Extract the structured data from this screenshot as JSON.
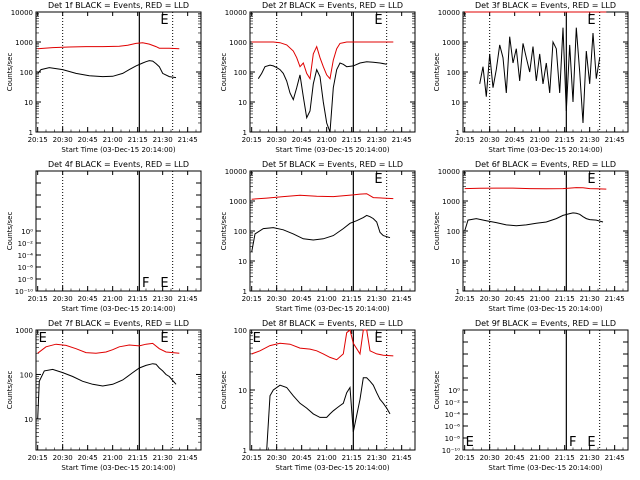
{
  "figure": {
    "background": "#ffffff",
    "axis_color": "#000000",
    "events_color": "#000000",
    "lld_color": "#e00000"
  },
  "chart_data": [
    {
      "type": "line",
      "title": "Det 1f BLACK = Events, RED = LLD",
      "xlabel": "Start Time (03-Dec-15 20:14:00)",
      "ylabel": "Counts/sec",
      "x_ticks": [
        "20:15",
        "20:30",
        "20:45",
        "21:00",
        "21:15",
        "21:30",
        "21:45"
      ],
      "y_ticks": [
        "1",
        "10",
        "100",
        "1000",
        "10000"
      ],
      "yscale": "log",
      "ylim": [
        1,
        10000
      ],
      "xlim_minutes": [
        0,
        99
      ],
      "dotted_verticals_min": [
        16,
        82
      ],
      "solid_verticals_min": [
        62
      ],
      "markers": [
        {
          "label": "E",
          "minute": 74
        }
      ],
      "series": [
        {
          "color": "red",
          "x": [
            1,
            10,
            20,
            30,
            40,
            50,
            55,
            60,
            64,
            68,
            72,
            74,
            80,
            86
          ],
          "y": [
            600,
            650,
            680,
            700,
            700,
            720,
            780,
            900,
            950,
            850,
            700,
            620,
            620,
            600
          ]
        },
        {
          "color": "black",
          "x": [
            1,
            3,
            8,
            16,
            24,
            32,
            40,
            46,
            52,
            56,
            60,
            64,
            66,
            68,
            70,
            72,
            74,
            76,
            80,
            84
          ],
          "y": [
            90,
            120,
            140,
            120,
            90,
            75,
            70,
            72,
            90,
            120,
            160,
            200,
            220,
            240,
            230,
            190,
            150,
            90,
            70,
            65
          ]
        }
      ]
    },
    {
      "type": "line",
      "title": "Det 2f BLACK = Events, RED = LLD",
      "xlabel": "Start Time (03-Dec-15 20:14:00)",
      "ylabel": "Counts/sec",
      "x_ticks": [
        "20:15",
        "20:30",
        "20:45",
        "21:00",
        "21:15",
        "21:30",
        "21:45"
      ],
      "y_ticks": [
        "1",
        "10",
        "100",
        "1000",
        "10000"
      ],
      "yscale": "log",
      "ylim": [
        1,
        10000
      ],
      "xlim_minutes": [
        0,
        99
      ],
      "dotted_verticals_min": [
        16,
        82
      ],
      "solid_verticals_min": [
        62
      ],
      "markers": [
        {
          "label": "E",
          "minute": 74
        }
      ],
      "series": [
        {
          "color": "red",
          "x": [
            1,
            8,
            14,
            18,
            22,
            26,
            28,
            30,
            32,
            34,
            36,
            38,
            40,
            42,
            44,
            46,
            48,
            50,
            52,
            54,
            56,
            58,
            60,
            62,
            64,
            68,
            76,
            86
          ],
          "y": [
            1000,
            1000,
            1000,
            950,
            800,
            500,
            300,
            150,
            200,
            90,
            60,
            400,
            700,
            300,
            150,
            80,
            60,
            250,
            600,
            900,
            950,
            1000,
            1000,
            1000,
            1000,
            1000,
            1000,
            1000
          ]
        },
        {
          "color": "black",
          "x": [
            5,
            7,
            9,
            12,
            14,
            16,
            18,
            20,
            22,
            24,
            26,
            28,
            30,
            32,
            34,
            36,
            38,
            40,
            42,
            44,
            46,
            48,
            50,
            52,
            54,
            56,
            58,
            62,
            66,
            70,
            74,
            78,
            82
          ],
          "y": [
            60,
            90,
            150,
            170,
            160,
            140,
            120,
            90,
            50,
            20,
            12,
            30,
            80,
            15,
            3,
            5,
            40,
            120,
            70,
            10,
            2,
            1,
            30,
            120,
            200,
            180,
            150,
            160,
            200,
            220,
            210,
            200,
            180
          ]
        }
      ]
    },
    {
      "type": "line",
      "title": "Det 3f BLACK = Events, RED = LLD",
      "xlabel": "Start Time (03-Dec-15 20:14:00)",
      "ylabel": "Counts/sec",
      "x_ticks": [
        "20:15",
        "20:30",
        "20:45",
        "21:00",
        "21:15",
        "21:30",
        "21:45"
      ],
      "y_ticks": [
        "1",
        "10",
        "100",
        "1000",
        "10000"
      ],
      "yscale": "log",
      "ylim": [
        1,
        10000
      ],
      "xlim_minutes": [
        0,
        99
      ],
      "dotted_verticals_min": [
        16,
        82
      ],
      "solid_verticals_min": [
        62
      ],
      "markers": [
        {
          "label": "E",
          "minute": 74
        }
      ],
      "series": [
        {
          "color": "red",
          "x": [
            1,
            20,
            40,
            60,
            80,
            86
          ],
          "y": [
            11000,
            11000,
            11000,
            11000,
            11000,
            11000
          ]
        },
        {
          "color": "black",
          "x": [
            10,
            12,
            14,
            16,
            18,
            20,
            22,
            24,
            26,
            28,
            30,
            32,
            34,
            36,
            38,
            40,
            42,
            44,
            46,
            48,
            50,
            52,
            54,
            56,
            58,
            60,
            62,
            64,
            66,
            68,
            70,
            72,
            74,
            76,
            78,
            80,
            82
          ],
          "y": [
            40,
            150,
            15,
            400,
            30,
            120,
            800,
            300,
            20,
            1500,
            200,
            600,
            50,
            900,
            300,
            100,
            700,
            50,
            400,
            40,
            200,
            20,
            1000,
            600,
            20,
            3000,
            5,
            800,
            10,
            3000,
            100,
            2,
            500,
            40,
            2000,
            60,
            300
          ]
        }
      ]
    },
    {
      "type": "line",
      "title": "Det 4f BLACK = Events, RED = LLD",
      "xlabel": "Start Time (03-Dec-15 20:14:00)",
      "ylabel": "Counts/sec",
      "x_ticks": [
        "20:15",
        "20:30",
        "20:45",
        "21:00",
        "21:15",
        "21:30",
        "21:45"
      ],
      "y_ticks": [
        "10⁻¹⁰",
        "10⁻⁸",
        "10⁻⁶",
        "10⁻⁴",
        "10⁻²",
        "10⁰"
      ],
      "yscale": "log",
      "ylim": [
        1e-10,
        1
      ],
      "xlim_minutes": [
        0,
        99
      ],
      "dotted_verticals_min": [
        16,
        82
      ],
      "solid_verticals_min": [
        62
      ],
      "markers": [
        {
          "label": "F",
          "minute": 63
        },
        {
          "label": "E",
          "minute": 74
        }
      ],
      "series": []
    },
    {
      "type": "line",
      "title": "Det 5f BLACK = Events, RED = LLD",
      "xlabel": "Start Time (03-Dec-15 20:14:00)",
      "ylabel": "Counts/sec",
      "x_ticks": [
        "20:15",
        "20:30",
        "20:45",
        "21:00",
        "21:15",
        "21:30",
        "21:45"
      ],
      "y_ticks": [
        "1",
        "10",
        "100",
        "1000",
        "10000"
      ],
      "yscale": "log",
      "ylim": [
        1,
        10000
      ],
      "xlim_minutes": [
        0,
        99
      ],
      "dotted_verticals_min": [
        16,
        82
      ],
      "solid_verticals_min": [
        62
      ],
      "markers": [
        {
          "label": "E",
          "minute": 74
        }
      ],
      "series": [
        {
          "color": "red",
          "x": [
            1,
            10,
            20,
            30,
            40,
            50,
            56,
            62,
            66,
            70,
            74,
            80,
            86
          ],
          "y": [
            1150,
            1250,
            1400,
            1550,
            1450,
            1400,
            1500,
            1600,
            1700,
            1750,
            1300,
            1250,
            1200
          ]
        },
        {
          "color": "black",
          "x": [
            1,
            3,
            8,
            14,
            20,
            26,
            32,
            38,
            44,
            50,
            56,
            60,
            64,
            68,
            70,
            72,
            74,
            76,
            78,
            80,
            84
          ],
          "y": [
            20,
            80,
            120,
            130,
            110,
            80,
            55,
            50,
            55,
            70,
            120,
            180,
            220,
            280,
            330,
            300,
            260,
            200,
            90,
            70,
            60
          ]
        }
      ]
    },
    {
      "type": "line",
      "title": "Det 6f BLACK = Events, RED = LLD",
      "xlabel": "Start Time (03-Dec-15 20:14:00)",
      "ylabel": "Counts/sec",
      "x_ticks": [
        "20:15",
        "20:30",
        "20:45",
        "21:00",
        "21:15",
        "21:30",
        "21:45"
      ],
      "y_ticks": [
        "1",
        "10",
        "100",
        "1000",
        "10000"
      ],
      "yscale": "log",
      "ylim": [
        1,
        10000
      ],
      "xlim_minutes": [
        0,
        99
      ],
      "dotted_verticals_min": [
        16,
        82
      ],
      "solid_verticals_min": [
        62
      ],
      "markers": [
        {
          "label": "E",
          "minute": 74
        }
      ],
      "series": [
        {
          "color": "red",
          "x": [
            1,
            10,
            20,
            30,
            40,
            50,
            60,
            64,
            68,
            72,
            76,
            80,
            86
          ],
          "y": [
            2600,
            2650,
            2700,
            2700,
            2600,
            2550,
            2600,
            2700,
            2800,
            2750,
            2600,
            2550,
            2500
          ]
        },
        {
          "color": "black",
          "x": [
            1,
            3,
            8,
            14,
            20,
            26,
            32,
            38,
            44,
            50,
            56,
            60,
            64,
            66,
            68,
            70,
            72,
            74,
            76,
            80,
            84
          ],
          "y": [
            100,
            230,
            260,
            220,
            190,
            160,
            150,
            160,
            180,
            200,
            260,
            330,
            380,
            400,
            390,
            360,
            300,
            260,
            240,
            230,
            200
          ]
        }
      ]
    },
    {
      "type": "line",
      "title": "Det 7f BLACK = Events, RED = LLD",
      "xlabel": "Start Time (03-Dec-15 20:14:00)",
      "ylabel": "Counts/sec",
      "x_ticks": [
        "20:15",
        "20:30",
        "20:45",
        "21:00",
        "21:15",
        "21:30",
        "21:45"
      ],
      "y_ticks": [
        "10",
        "100",
        "1000"
      ],
      "yscale": "log",
      "ylim": [
        2,
        1000
      ],
      "xlim_minutes": [
        0,
        99
      ],
      "dotted_verticals_min": [
        16,
        82
      ],
      "solid_verticals_min": [
        62
      ],
      "markers": [
        {
          "label": "E",
          "minute": 1
        },
        {
          "label": "E",
          "minute": 74
        }
      ],
      "series": [
        {
          "color": "red",
          "x": [
            1,
            6,
            12,
            18,
            24,
            30,
            36,
            42,
            46,
            50,
            56,
            62,
            66,
            70,
            74,
            78,
            86
          ],
          "y": [
            300,
            420,
            480,
            450,
            380,
            310,
            300,
            320,
            360,
            420,
            460,
            440,
            480,
            500,
            380,
            320,
            300
          ]
        },
        {
          "color": "black",
          "x": [
            1,
            2,
            5,
            10,
            16,
            22,
            28,
            34,
            40,
            46,
            52,
            58,
            62,
            66,
            70,
            72,
            74,
            76,
            78,
            80,
            84
          ],
          "y": [
            10,
            70,
            120,
            130,
            110,
            90,
            70,
            60,
            55,
            60,
            75,
            110,
            140,
            160,
            175,
            170,
            140,
            120,
            100,
            90,
            60
          ]
        }
      ]
    },
    {
      "type": "line",
      "title": "Det 8f BLACK = Events, RED = LLD",
      "xlabel": "Start Time (03-Dec-15 20:14:00)",
      "ylabel": "Counts/sec",
      "x_ticks": [
        "20:15",
        "20:30",
        "20:45",
        "21:00",
        "21:15",
        "21:30",
        "21:45"
      ],
      "y_ticks": [
        "1",
        "10",
        "100"
      ],
      "yscale": "log",
      "ylim": [
        1,
        100
      ],
      "xlim_minutes": [
        0,
        99
      ],
      "dotted_verticals_min": [
        16,
        82
      ],
      "solid_verticals_min": [
        62
      ],
      "markers": [
        {
          "label": "E",
          "minute": 1
        },
        {
          "label": "E",
          "minute": 74
        }
      ],
      "series": [
        {
          "color": "red",
          "x": [
            1,
            6,
            12,
            18,
            24,
            30,
            36,
            40,
            44,
            48,
            52,
            56,
            58,
            60,
            62,
            66,
            68,
            70,
            72,
            76,
            80,
            86
          ],
          "y": [
            40,
            45,
            55,
            60,
            58,
            50,
            48,
            45,
            40,
            35,
            32,
            40,
            90,
            100,
            60,
            40,
            100,
            100,
            45,
            40,
            38,
            37
          ]
        },
        {
          "color": "black",
          "x": [
            10,
            12,
            14,
            18,
            22,
            26,
            30,
            34,
            38,
            42,
            44,
            46,
            48,
            50,
            52,
            54,
            56,
            58,
            60,
            62,
            66,
            68,
            70,
            72,
            74,
            76,
            78,
            80,
            82,
            84
          ],
          "y": [
            1,
            8,
            10,
            12,
            11,
            8,
            6,
            5,
            4,
            3.5,
            3.5,
            3.5,
            4,
            4.5,
            5,
            5.5,
            6,
            9,
            11,
            2,
            7,
            16,
            16,
            14,
            12,
            9,
            7,
            6,
            5,
            4
          ]
        }
      ]
    },
    {
      "type": "line",
      "title": "Det 9f BLACK = Events, RED = LLD",
      "xlabel": "Start Time (03-Dec-15 20:14:00)",
      "ylabel": "Counts/sec",
      "x_ticks": [
        "20:15",
        "20:30",
        "20:45",
        "21:00",
        "21:15",
        "21:30",
        "21:45"
      ],
      "y_ticks": [
        "10⁻¹⁰",
        "10⁻⁸",
        "10⁻⁶",
        "10⁻⁴",
        "10⁻²",
        "10⁰"
      ],
      "yscale": "log",
      "ylim": [
        1e-10,
        1
      ],
      "xlim_minutes": [
        0,
        99
      ],
      "dotted_verticals_min": [
        16,
        82
      ],
      "solid_verticals_min": [
        62
      ],
      "markers": [
        {
          "label": "E",
          "minute": 1
        },
        {
          "label": "F",
          "minute": 63
        },
        {
          "label": "E",
          "minute": 74
        }
      ],
      "series": []
    }
  ]
}
